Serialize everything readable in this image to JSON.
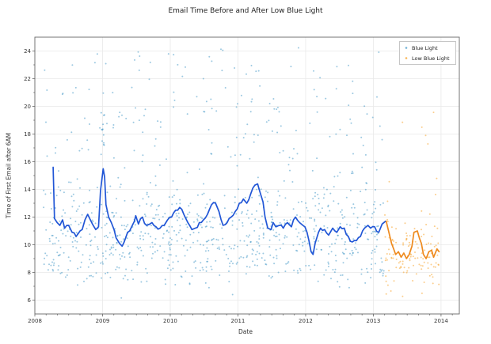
{
  "chart_data": {
    "type": "scatter",
    "title": "Email Time Before and After Low Blue Light",
    "xlabel": "Date",
    "ylabel": "Time of First Email after 6AM",
    "xlim": [
      2008,
      2014.27
    ],
    "ylim": [
      5,
      25
    ],
    "x_ticks": [
      2008,
      2009,
      2010,
      2011,
      2012,
      2013,
      2014
    ],
    "y_ticks": [
      6,
      8,
      10,
      12,
      14,
      16,
      18,
      20,
      22,
      24
    ],
    "grid": true,
    "colors": {
      "blue_line": "#2156d6",
      "orange_line": "#ee8a1e",
      "blue_scatter": "rgba(56,146,196,0.5)",
      "orange_scatter": "rgba(247,164,44,0.55)",
      "grid": "#e9e9e9",
      "spine": "#666666",
      "tick_label": "#333333"
    },
    "legend": {
      "position": "top-right",
      "entries": [
        {
          "label": "Blue Light",
          "marker_color": "rgba(56,146,196,0.7)"
        },
        {
          "label": "Low Blue Light",
          "marker_color": "rgba(247,164,44,0.8)"
        }
      ]
    },
    "series": [
      {
        "name": "Blue Light trend",
        "type": "line",
        "color": "#2156d6",
        "points": [
          [
            2008.27,
            15.6
          ],
          [
            2008.29,
            11.9
          ],
          [
            2008.33,
            11.6
          ],
          [
            2008.37,
            11.4
          ],
          [
            2008.41,
            11.8
          ],
          [
            2008.44,
            11.2
          ],
          [
            2008.5,
            11.4
          ],
          [
            2008.55,
            10.9
          ],
          [
            2008.61,
            10.6
          ],
          [
            2008.64,
            10.8
          ],
          [
            2008.7,
            11.1
          ],
          [
            2008.74,
            11.8
          ],
          [
            2008.78,
            12.2
          ],
          [
            2008.82,
            11.8
          ],
          [
            2008.85,
            11.5
          ],
          [
            2008.9,
            11.1
          ],
          [
            2008.94,
            11.3
          ],
          [
            2008.97,
            13.9
          ],
          [
            2009.01,
            15.5
          ],
          [
            2009.03,
            14.9
          ],
          [
            2009.05,
            12.9
          ],
          [
            2009.09,
            12.0
          ],
          [
            2009.13,
            11.6
          ],
          [
            2009.17,
            11.1
          ],
          [
            2009.2,
            10.5
          ],
          [
            2009.25,
            10.1
          ],
          [
            2009.29,
            9.9
          ],
          [
            2009.32,
            10.2
          ],
          [
            2009.37,
            10.9
          ],
          [
            2009.4,
            11.0
          ],
          [
            2009.44,
            11.4
          ],
          [
            2009.47,
            11.7
          ],
          [
            2009.49,
            12.1
          ],
          [
            2009.53,
            11.5
          ],
          [
            2009.59,
            12.0
          ],
          [
            2009.65,
            11.4
          ],
          [
            2009.73,
            11.6
          ],
          [
            2009.79,
            11.3
          ],
          [
            2009.85,
            11.2
          ],
          [
            2009.91,
            11.4
          ],
          [
            2009.96,
            11.8
          ],
          [
            2010.02,
            12.0
          ],
          [
            2010.08,
            12.5
          ],
          [
            2010.14,
            12.7
          ],
          [
            2010.2,
            12.2
          ],
          [
            2010.26,
            11.6
          ],
          [
            2010.32,
            11.1
          ],
          [
            2010.37,
            11.2
          ],
          [
            2010.43,
            11.6
          ],
          [
            2010.49,
            11.8
          ],
          [
            2010.55,
            12.2
          ],
          [
            2010.61,
            12.9
          ],
          [
            2010.67,
            13.0
          ],
          [
            2010.72,
            12.4
          ],
          [
            2010.78,
            11.4
          ],
          [
            2010.84,
            11.6
          ],
          [
            2010.9,
            12.0
          ],
          [
            2010.96,
            12.4
          ],
          [
            2011.02,
            13.0
          ],
          [
            2011.08,
            13.3
          ],
          [
            2011.13,
            13.0
          ],
          [
            2011.19,
            13.7
          ],
          [
            2011.25,
            14.3
          ],
          [
            2011.29,
            14.4
          ],
          [
            2011.32,
            13.9
          ],
          [
            2011.37,
            13.1
          ],
          [
            2011.4,
            12.0
          ],
          [
            2011.44,
            11.2
          ],
          [
            2011.49,
            11.1
          ],
          [
            2011.52,
            11.6
          ],
          [
            2011.56,
            11.3
          ],
          [
            2011.61,
            11.4
          ],
          [
            2011.67,
            11.2
          ],
          [
            2011.73,
            11.6
          ],
          [
            2011.79,
            11.3
          ],
          [
            2011.85,
            12.0
          ],
          [
            2011.91,
            11.6
          ],
          [
            2011.96,
            11.4
          ],
          [
            2012.02,
            10.9
          ],
          [
            2012.08,
            9.5
          ],
          [
            2012.11,
            9.3
          ],
          [
            2012.14,
            10.1
          ],
          [
            2012.19,
            10.9
          ],
          [
            2012.22,
            11.2
          ],
          [
            2012.28,
            11.1
          ],
          [
            2012.34,
            10.7
          ],
          [
            2012.4,
            11.2
          ],
          [
            2012.46,
            10.9
          ],
          [
            2012.51,
            11.3
          ],
          [
            2012.57,
            11.2
          ],
          [
            2012.63,
            10.6
          ],
          [
            2012.69,
            10.2
          ],
          [
            2012.75,
            10.3
          ],
          [
            2012.81,
            10.6
          ],
          [
            2012.87,
            11.2
          ],
          [
            2012.92,
            11.4
          ],
          [
            2012.96,
            11.2
          ],
          [
            2013.02,
            11.3
          ],
          [
            2013.08,
            10.9
          ],
          [
            2013.13,
            11.5
          ],
          [
            2013.18,
            11.7
          ]
        ]
      },
      {
        "name": "Low Blue Light trend",
        "type": "line",
        "color": "#ee8a1e",
        "points": [
          [
            2013.19,
            11.7
          ],
          [
            2013.24,
            10.7
          ],
          [
            2013.3,
            9.7
          ],
          [
            2013.33,
            9.3
          ],
          [
            2013.37,
            9.5
          ],
          [
            2013.41,
            9.1
          ],
          [
            2013.45,
            9.4
          ],
          [
            2013.49,
            9.0
          ],
          [
            2013.53,
            9.3
          ],
          [
            2013.57,
            9.9
          ],
          [
            2013.6,
            10.9
          ],
          [
            2013.65,
            11.0
          ],
          [
            2013.71,
            10.1
          ],
          [
            2013.74,
            9.3
          ],
          [
            2013.78,
            9.0
          ],
          [
            2013.82,
            9.5
          ],
          [
            2013.86,
            9.6
          ],
          [
            2013.89,
            9.1
          ],
          [
            2013.94,
            9.7
          ],
          [
            2013.97,
            9.5
          ]
        ]
      }
    ],
    "scatter": [
      {
        "name": "Blue Light daily points",
        "color": "rgba(56,146,196,0.5)",
        "seed": 42,
        "count": 950,
        "x_range": [
          2008.13,
          2013.16
        ],
        "clip": [
          6.1,
          24.4
        ],
        "y_mix": [
          {
            "w": 0.6,
            "mu": 11.0,
            "sigma": 1.6
          },
          {
            "w": 0.18,
            "mu": 8.6,
            "sigma": 0.9
          },
          {
            "w": 0.22,
            "uniform": [
              12.5,
              24.3
            ]
          }
        ]
      },
      {
        "name": "2009 high cluster",
        "color": "rgba(56,146,196,0.55)",
        "seed": 7,
        "count": 12,
        "x_range": [
          2008.98,
          2009.03
        ],
        "clip": [
          16.8,
          19.6
        ],
        "y_mix": [
          {
            "w": 1.0,
            "uniform": [
              16.8,
              19.6
            ]
          }
        ]
      },
      {
        "name": "Low Blue Light daily points",
        "color": "rgba(247,164,44,0.55)",
        "seed": 99,
        "count": 130,
        "x_range": [
          2013.17,
          2013.97
        ],
        "clip": [
          6.2,
          23.5
        ],
        "y_mix": [
          {
            "w": 0.88,
            "mu": 9.2,
            "sigma": 1.25
          },
          {
            "w": 0.12,
            "uniform": [
              6.4,
              23.0
            ]
          }
        ]
      }
    ]
  }
}
